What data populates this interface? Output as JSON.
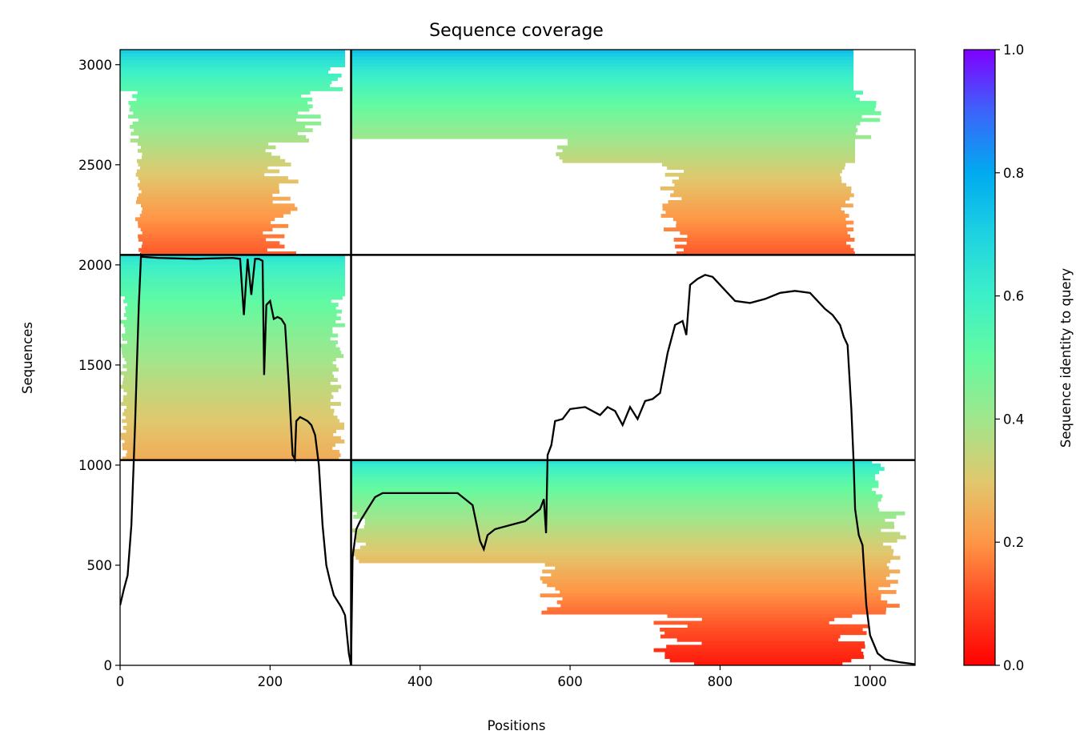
{
  "chart_data": {
    "type": "heatmap",
    "title": "Sequence coverage",
    "xlabel": "Positions",
    "ylabel": "Sequences",
    "xlim": [
      0,
      1060
    ],
    "ylim": [
      0,
      3075
    ],
    "xticks": [
      0,
      200,
      400,
      600,
      800,
      1000
    ],
    "yticks": [
      0,
      500,
      1000,
      1500,
      2000,
      2500,
      3000
    ],
    "colorbar": {
      "label": "Sequence identity to query",
      "range": [
        0,
        1
      ],
      "ticks": [
        "0.0",
        "0.2",
        "0.4",
        "0.6",
        "0.8",
        "1.0"
      ],
      "colormap": "rainbow_r"
    },
    "block_boundaries": {
      "x": [
        308
      ],
      "y": [
        1025,
        2050
      ]
    },
    "blocks": [
      {
        "id": "A",
        "x": [
          0,
          308
        ],
        "y": [
          2050,
          3075
        ],
        "identity_top": 0.72,
        "identity_bottom": 0.12
      },
      {
        "id": "B",
        "x": [
          308,
          1060
        ],
        "y": [
          2050,
          3075
        ],
        "identity_top": 0.75,
        "identity_bottom": 0.12
      },
      {
        "id": "C",
        "x": [
          0,
          308
        ],
        "y": [
          1025,
          2050
        ],
        "identity_top": 0.65,
        "identity_bottom": 0.24
      },
      {
        "id": "D",
        "x": [
          308,
          1060
        ],
        "y": [
          0,
          1025
        ],
        "identity_top": 0.65,
        "identity_bottom": 0.03
      }
    ],
    "coverage_line": {
      "x": [
        0,
        5,
        10,
        15,
        18,
        20,
        22,
        25,
        28,
        30,
        50,
        100,
        150,
        160,
        165,
        170,
        175,
        180,
        185,
        190,
        192,
        195,
        200,
        205,
        210,
        215,
        220,
        225,
        230,
        233,
        235,
        240,
        245,
        250,
        255,
        260,
        265,
        270,
        275,
        280,
        285,
        290,
        295,
        300,
        305,
        308,
        310,
        315,
        320,
        330,
        340,
        350,
        400,
        450,
        470,
        480,
        485,
        490,
        500,
        520,
        540,
        560,
        565,
        568,
        570,
        575,
        580,
        590,
        600,
        620,
        640,
        650,
        660,
        670,
        680,
        690,
        700,
        710,
        720,
        730,
        740,
        745,
        750,
        755,
        760,
        770,
        780,
        790,
        800,
        820,
        840,
        860,
        880,
        900,
        920,
        940,
        950,
        960,
        965,
        970,
        975,
        978,
        980,
        985,
        990,
        995,
        1000,
        1010,
        1020,
        1040,
        1060
      ],
      "y": [
        300,
        380,
        450,
        700,
        1000,
        1200,
        1450,
        1800,
        2050,
        2040,
        2035,
        2030,
        2035,
        2030,
        1750,
        2030,
        1850,
        2030,
        2030,
        2020,
        1450,
        1800,
        1820,
        1730,
        1740,
        1730,
        1700,
        1400,
        1050,
        1030,
        1220,
        1240,
        1230,
        1220,
        1200,
        1150,
        1000,
        700,
        500,
        420,
        350,
        320,
        290,
        250,
        60,
        0,
        540,
        680,
        720,
        780,
        840,
        860,
        860,
        860,
        800,
        620,
        580,
        650,
        680,
        700,
        720,
        780,
        830,
        660,
        1050,
        1100,
        1220,
        1230,
        1280,
        1290,
        1250,
        1290,
        1270,
        1200,
        1290,
        1230,
        1320,
        1330,
        1360,
        1560,
        1700,
        1710,
        1720,
        1650,
        1900,
        1930,
        1950,
        1940,
        1900,
        1820,
        1810,
        1830,
        1860,
        1870,
        1860,
        1780,
        1750,
        1700,
        1640,
        1600,
        1280,
        1020,
        780,
        650,
        600,
        300,
        150,
        60,
        30,
        15,
        5
      ]
    }
  }
}
